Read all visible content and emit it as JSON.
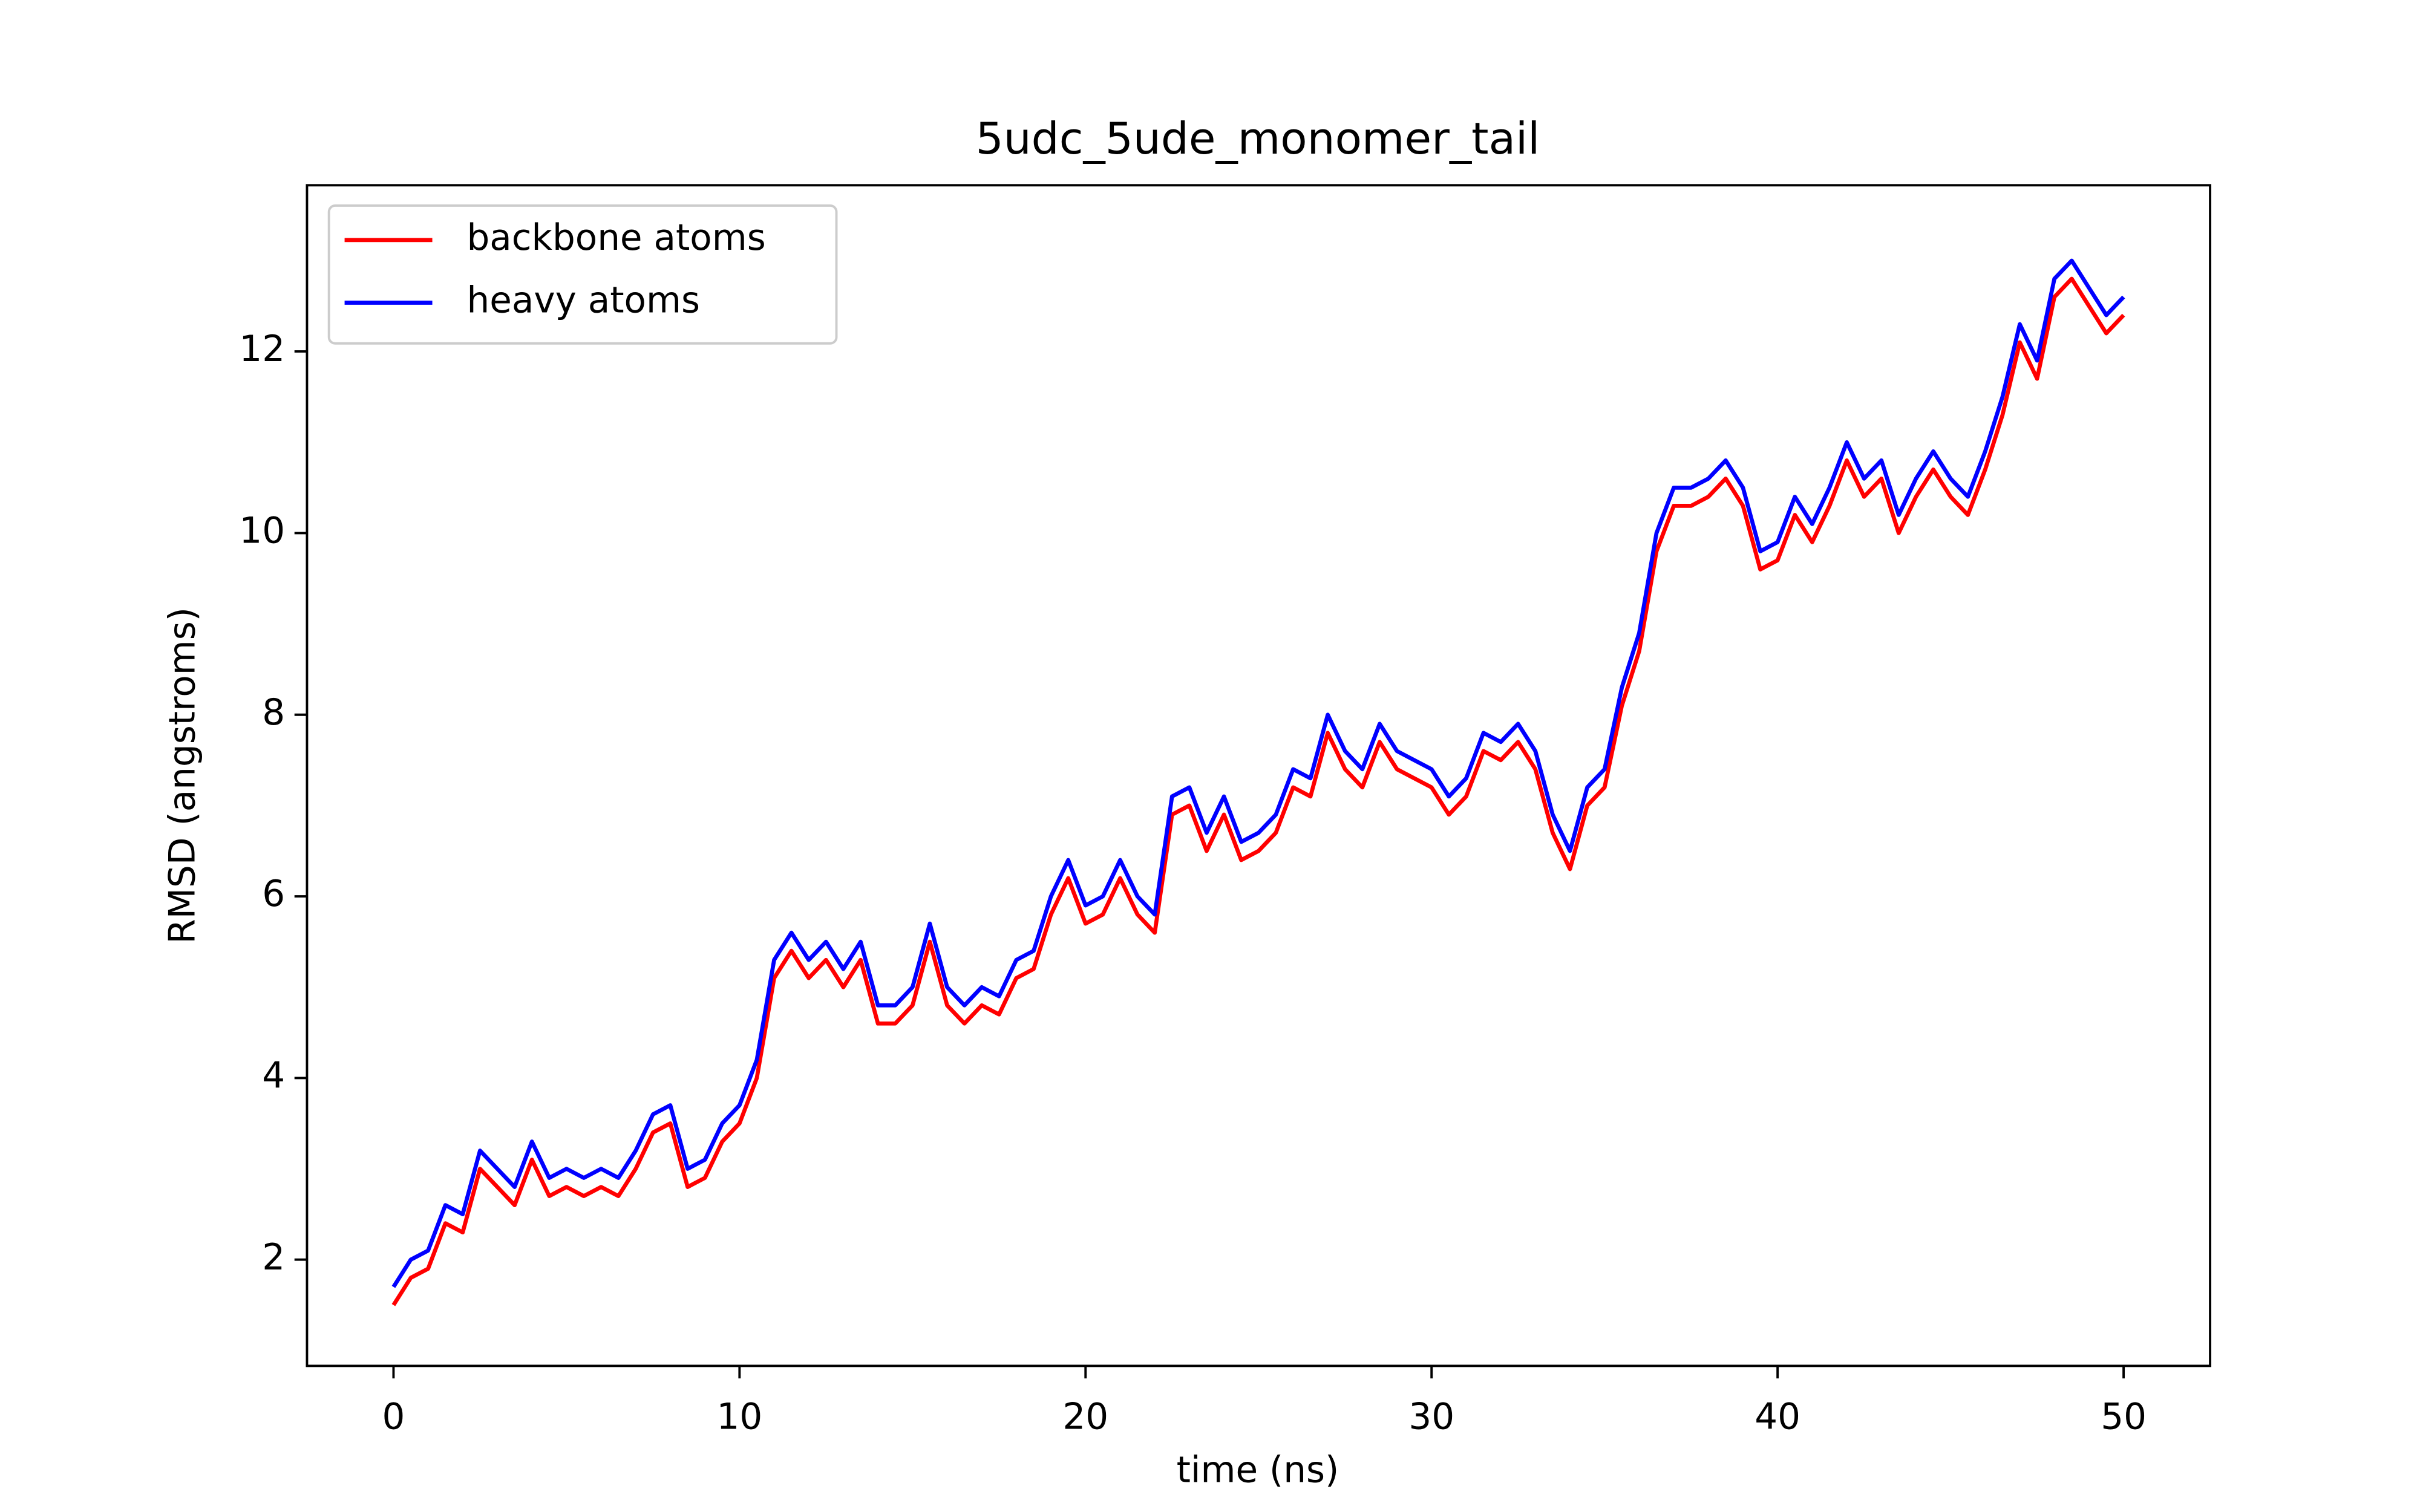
{
  "chart_data": {
    "type": "line",
    "title": "5udc_5ude_monomer_tail",
    "x_label": "time (ns)",
    "y_label": "RMSD (angstroms)",
    "x": [
      0,
      0.5,
      1,
      1.5,
      2,
      2.5,
      3,
      3.5,
      4,
      4.5,
      5,
      5.5,
      6,
      6.5,
      7,
      7.5,
      8,
      8.5,
      9,
      9.5,
      10,
      10.5,
      11,
      11.5,
      12,
      12.5,
      13,
      13.5,
      14,
      14.5,
      15,
      15.5,
      16,
      16.5,
      17,
      17.5,
      18,
      18.5,
      19,
      19.5,
      20,
      20.5,
      21,
      21.5,
      22,
      22.5,
      23,
      23.5,
      24,
      24.5,
      25,
      25.5,
      26,
      26.5,
      27,
      27.5,
      28,
      28.5,
      29,
      29.5,
      30,
      30.5,
      31,
      31.5,
      32,
      32.5,
      33,
      33.5,
      34,
      34.5,
      35,
      35.5,
      36,
      36.5,
      37,
      37.5,
      38,
      38.5,
      39,
      39.5,
      40,
      40.5,
      41,
      41.5,
      42,
      42.5,
      43,
      43.5,
      44,
      44.5,
      45,
      45.5,
      46,
      46.5,
      47,
      47.5,
      48,
      48.5,
      49,
      49.5,
      50
    ],
    "series": [
      {
        "name": "backbone atoms",
        "color": "#ff0000",
        "values": [
          1.5,
          1.8,
          1.9,
          2.4,
          2.3,
          3.0,
          2.8,
          2.6,
          3.1,
          2.7,
          2.8,
          2.7,
          2.8,
          2.7,
          3.0,
          3.4,
          3.5,
          2.8,
          2.9,
          3.3,
          3.5,
          4.0,
          5.1,
          5.4,
          5.1,
          5.3,
          5.0,
          5.3,
          4.6,
          4.6,
          4.8,
          5.5,
          4.8,
          4.6,
          4.8,
          4.7,
          5.1,
          5.2,
          5.8,
          6.2,
          5.7,
          5.8,
          6.2,
          5.8,
          5.6,
          6.9,
          7.0,
          6.5,
          6.9,
          6.4,
          6.5,
          6.7,
          7.2,
          7.1,
          7.8,
          7.4,
          7.2,
          7.7,
          7.4,
          7.3,
          7.2,
          6.9,
          7.1,
          7.6,
          7.5,
          7.7,
          7.4,
          6.7,
          6.3,
          7.0,
          7.2,
          8.1,
          8.7,
          9.8,
          10.3,
          10.3,
          10.4,
          10.6,
          10.3,
          9.6,
          9.7,
          10.2,
          9.9,
          10.3,
          10.8,
          10.4,
          10.6,
          10.0,
          10.4,
          10.7,
          10.4,
          10.2,
          10.7,
          11.3,
          12.1,
          11.7,
          12.6,
          12.8,
          12.5,
          12.2,
          12.4
        ]
      },
      {
        "name": "heavy atoms",
        "color": "#0000ff",
        "values": [
          1.7,
          2.0,
          2.1,
          2.6,
          2.5,
          3.2,
          3.0,
          2.8,
          3.3,
          2.9,
          3.0,
          2.9,
          3.0,
          2.9,
          3.2,
          3.6,
          3.7,
          3.0,
          3.1,
          3.5,
          3.7,
          4.2,
          5.3,
          5.6,
          5.3,
          5.5,
          5.2,
          5.5,
          4.8,
          4.8,
          5.0,
          5.7,
          5.0,
          4.8,
          5.0,
          4.9,
          5.3,
          5.4,
          6.0,
          6.4,
          5.9,
          6.0,
          6.4,
          6.0,
          5.8,
          7.1,
          7.2,
          6.7,
          7.1,
          6.6,
          6.7,
          6.9,
          7.4,
          7.3,
          8.0,
          7.6,
          7.4,
          7.9,
          7.6,
          7.5,
          7.4,
          7.1,
          7.3,
          7.8,
          7.7,
          7.9,
          7.6,
          6.9,
          6.5,
          7.2,
          7.4,
          8.3,
          8.9,
          10.0,
          10.5,
          10.5,
          10.6,
          10.8,
          10.5,
          9.8,
          9.9,
          10.4,
          10.1,
          10.5,
          11.0,
          10.6,
          10.8,
          10.2,
          10.6,
          10.9,
          10.6,
          10.4,
          10.9,
          11.5,
          12.3,
          11.9,
          12.8,
          13.0,
          12.7,
          12.4,
          12.6
        ]
      }
    ],
    "xlim": [
      -2.5,
      52.5
    ],
    "xticks": [
      0,
      10,
      20,
      30,
      40,
      50
    ],
    "ylim": [
      0.83,
      13.83
    ],
    "yticks": [
      2,
      4,
      6,
      8,
      10,
      12
    ],
    "legend": "upper left"
  }
}
